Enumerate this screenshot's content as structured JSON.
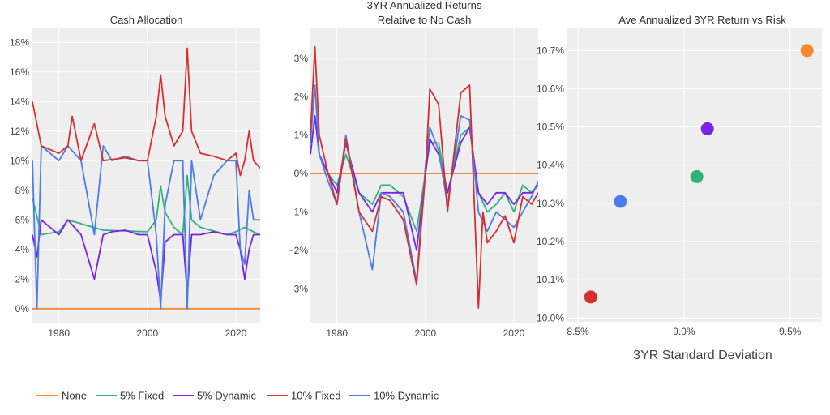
{
  "colors": {
    "None": "#f28a30",
    "5% Fixed": "#2fb37a",
    "5% Dynamic": "#7a23e6",
    "10% Fixed": "#d62f2f",
    "10% Dynamic": "#4c7ce8",
    "plot_bg": "#eeeeee",
    "grid": "#ffffff"
  },
  "legend": {
    "placement": "bottom-left",
    "items": [
      "None",
      "5% Fixed",
      "5% Dynamic",
      "10% Fixed",
      "10% Dynamic"
    ]
  },
  "chart_data": [
    {
      "type": "line",
      "title": "Cash Allocation",
      "xlabel": "",
      "ylabel": "",
      "xlim": [
        1974,
        2025.5
      ],
      "ylim": [
        -1,
        19
      ],
      "x_ticks": [
        1980,
        2000,
        2020
      ],
      "x_tick_labels": [
        "1980",
        "2000",
        "2020"
      ],
      "y_ticks": [
        0,
        2,
        4,
        6,
        8,
        10,
        12,
        14,
        16,
        18
      ],
      "y_tick_labels": [
        "0%",
        "2%",
        "4%",
        "6%",
        "8%",
        "10%",
        "12%",
        "14%",
        "16%",
        "18%"
      ],
      "series": [
        {
          "name": "None",
          "x": [
            1974,
            2025.5
          ],
          "values": [
            0,
            0
          ]
        },
        {
          "name": "5% Fixed",
          "x": [
            1974,
            1976,
            1980,
            1982,
            1990,
            2000,
            2002,
            2003,
            2004,
            2006,
            2008,
            2009,
            2010,
            2012,
            2018,
            2020,
            2022,
            2024,
            2025.5
          ],
          "values": [
            7.5,
            5,
            5.2,
            6,
            5.3,
            5.2,
            6,
            8.3,
            6.5,
            5.5,
            5,
            9,
            6,
            5.5,
            5,
            5.2,
            5.5,
            5.2,
            5
          ]
        },
        {
          "name": "5% Dynamic",
          "x": [
            1974,
            1975,
            1976,
            1978,
            1980,
            1982,
            1985,
            1988,
            1990,
            1992,
            1995,
            1998,
            2000,
            2002,
            2003,
            2004,
            2006,
            2008,
            2009,
            2010,
            2012,
            2015,
            2018,
            2020,
            2021,
            2022,
            2023,
            2024,
            2025.5
          ],
          "values": [
            5,
            3.5,
            6,
            5.5,
            5,
            6,
            5,
            2,
            5,
            5.2,
            5.3,
            5,
            5,
            2.5,
            0.5,
            4.5,
            5,
            5,
            1,
            5,
            5,
            5.2,
            5,
            5,
            4,
            2,
            4,
            5,
            5
          ]
        },
        {
          "name": "10% Fixed",
          "x": [
            1974,
            1976,
            1980,
            1982,
            1983,
            1985,
            1988,
            1990,
            1995,
            1998,
            2000,
            2002,
            2003,
            2004,
            2006,
            2008,
            2009,
            2010,
            2012,
            2015,
            2018,
            2020,
            2021,
            2022,
            2023,
            2024,
            2025.5
          ],
          "values": [
            14,
            11,
            10.5,
            11,
            13,
            10,
            12.5,
            10,
            10.2,
            10,
            10,
            13,
            15.8,
            13,
            11,
            12,
            17.6,
            12,
            10.5,
            10.3,
            10,
            10.5,
            9,
            10,
            12,
            10,
            9.5
          ]
        },
        {
          "name": "10% Dynamic",
          "x": [
            1974,
            1975,
            1976,
            1978,
            1980,
            1982,
            1985,
            1988,
            1990,
            1992,
            1995,
            1998,
            2000,
            2002,
            2003,
            2004,
            2006,
            2008,
            2009,
            2010,
            2012,
            2015,
            2018,
            2020,
            2021,
            2022,
            2023,
            2024,
            2025.5
          ],
          "values": [
            10,
            0,
            11,
            10.5,
            10,
            11,
            10,
            5,
            11,
            10,
            10.3,
            10,
            10,
            5,
            0,
            7,
            10,
            10,
            0,
            10,
            6,
            9,
            10,
            10,
            4,
            3,
            8,
            6,
            6
          ]
        }
      ]
    },
    {
      "type": "line",
      "title": "3YR Annualized Returns Relative to No Cash",
      "title_lines": [
        "3YR Annualized Returns",
        "Relative to No Cash"
      ],
      "xlabel": "",
      "ylabel": "",
      "xlim": [
        1974,
        2025.5
      ],
      "ylim": [
        -3.9,
        3.8
      ],
      "x_ticks": [
        1980,
        2000,
        2020
      ],
      "x_tick_labels": [
        "1980",
        "2000",
        "2020"
      ],
      "y_ticks": [
        -3,
        -2,
        -1,
        0,
        1,
        2,
        3
      ],
      "y_tick_labels": [
        "−3%",
        "−2%",
        "−1%",
        "0%",
        "1%",
        "2%",
        "3%"
      ],
      "series": [
        {
          "name": "None",
          "x": [
            1974,
            2025.5
          ],
          "values": [
            0,
            0
          ]
        },
        {
          "name": "5% Fixed",
          "x": [
            1974,
            1975,
            1976,
            1978,
            1980,
            1982,
            1985,
            1988,
            1990,
            1992,
            1995,
            1998,
            2000,
            2001,
            2003,
            2005,
            2008,
            2010,
            2012,
            2014,
            2016,
            2018,
            2020,
            2022,
            2024,
            2025.5
          ],
          "values": [
            0.5,
            1.5,
            0.5,
            0,
            -0.3,
            0.5,
            -0.5,
            -0.8,
            -0.3,
            -0.3,
            -0.6,
            -1.5,
            0,
            0.8,
            0.8,
            -0.5,
            1,
            1.2,
            -0.5,
            -1,
            -0.8,
            -0.5,
            -1,
            -0.3,
            -0.5,
            -0.3
          ]
        },
        {
          "name": "5% Dynamic",
          "x": [
            1974,
            1975,
            1976,
            1978,
            1980,
            1982,
            1985,
            1988,
            1990,
            1992,
            1995,
            1998,
            2000,
            2001,
            2003,
            2005,
            2008,
            2010,
            2012,
            2014,
            2016,
            2018,
            2020,
            2022,
            2024,
            2025.5
          ],
          "values": [
            0.5,
            1.5,
            0.5,
            0,
            -0.5,
            0.8,
            -0.5,
            -1,
            -0.5,
            -0.5,
            -0.5,
            -2,
            0,
            0.9,
            0.5,
            -0.5,
            0.8,
            1.2,
            -0.5,
            -0.8,
            -0.5,
            -0.5,
            -0.8,
            -0.5,
            -0.5,
            -0.3
          ]
        },
        {
          "name": "10% Fixed",
          "x": [
            1974,
            1975,
            1976,
            1978,
            1980,
            1982,
            1985,
            1988,
            1990,
            1992,
            1995,
            1998,
            2000,
            2001,
            2003,
            2005,
            2008,
            2010,
            2012,
            2013,
            2014,
            2016,
            2018,
            2020,
            2022,
            2024,
            2025.5
          ],
          "values": [
            1,
            3.3,
            1,
            0,
            -0.8,
            0.9,
            -1,
            -1.5,
            -0.6,
            -0.7,
            -1.2,
            -2.9,
            0,
            2.2,
            1.8,
            -1,
            2.1,
            2.3,
            -3.5,
            -1,
            -1.8,
            -1.5,
            -1.1,
            -1.8,
            -0.6,
            -0.8,
            -0.5
          ]
        },
        {
          "name": "10% Dynamic",
          "x": [
            1974,
            1975,
            1976,
            1978,
            1980,
            1982,
            1985,
            1988,
            1990,
            1992,
            1995,
            1998,
            2000,
            2001,
            2003,
            2005,
            2008,
            2010,
            2012,
            2014,
            2016,
            2018,
            2020,
            2022,
            2024,
            2025.5
          ],
          "values": [
            0.8,
            2.3,
            0.5,
            -0.2,
            -0.8,
            1,
            -1,
            -2.5,
            -0.5,
            -0.6,
            -1,
            -2.8,
            0.2,
            1.2,
            0.6,
            -0.8,
            1.5,
            1.4,
            -1,
            -1.5,
            -1,
            -1.2,
            -1.4,
            -1,
            -0.6,
            -0.2
          ]
        }
      ]
    },
    {
      "type": "scatter",
      "title": "Ave Annualized 3YR Return vs Risk",
      "xlabel": "3YR Standard Deviation",
      "ylabel": "",
      "xlim": [
        8.45,
        9.65
      ],
      "ylim": [
        9.99,
        10.76
      ],
      "x_ticks": [
        8.5,
        9.0,
        9.5
      ],
      "x_tick_labels": [
        "8.5%",
        "9.0%",
        "9.5%"
      ],
      "y_ticks": [
        10.0,
        10.1,
        10.2,
        10.3,
        10.4,
        10.5,
        10.6,
        10.7
      ],
      "y_tick_labels": [
        "10.0%",
        "10.1%",
        "10.2%",
        "10.3%",
        "10.4%",
        "10.5%",
        "10.6%",
        "10.7%"
      ],
      "points": [
        {
          "name": "None",
          "x": 9.58,
          "y": 10.7
        },
        {
          "name": "5% Fixed",
          "x": 9.06,
          "y": 10.37
        },
        {
          "name": "5% Dynamic",
          "x": 9.11,
          "y": 10.495
        },
        {
          "name": "10% Fixed",
          "x": 8.56,
          "y": 10.055
        },
        {
          "name": "10% Dynamic",
          "x": 8.7,
          "y": 10.305
        }
      ]
    }
  ]
}
